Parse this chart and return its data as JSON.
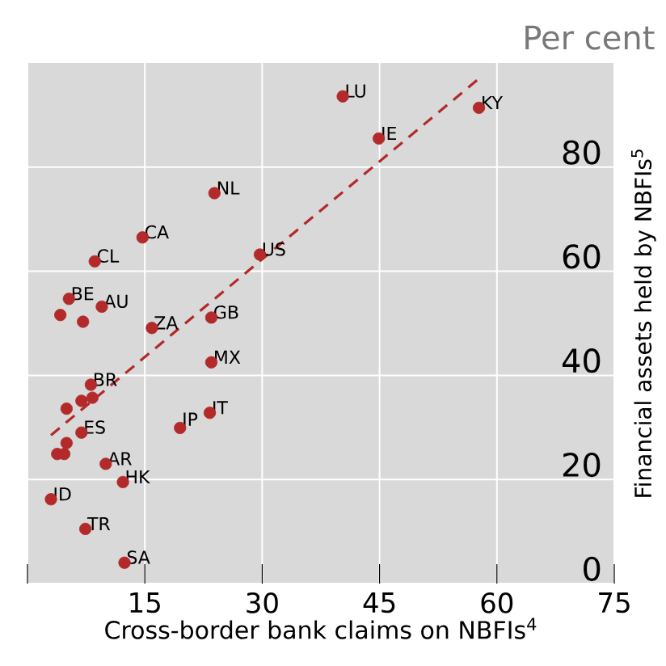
{
  "chart_data": {
    "type": "scatter",
    "xlabel": "Cross-border bank claims on NBFIs$^{4}$",
    "ylabel": "Financial assets held by NBFIs$^{5}$",
    "xlim": [
      0,
      75
    ],
    "xticks": [
      {
        "value": 0,
        "label": null
      },
      15,
      30,
      45,
      60,
      75
    ],
    "ylim": [
      0,
      100
    ],
    "yticks": [
      0,
      20,
      40,
      60,
      80
    ],
    "grid": true,
    "series": [
      {
        "marker": "circle",
        "color": "#b22a2a",
        "x": [
          40.3,
          57.7,
          44.9,
          23.9,
          14.7,
          29.7,
          8.6,
          5.3,
          9.5,
          4.2,
          7.1,
          23.5,
          15.9,
          23.5,
          8.1,
          6.9,
          8.3,
          5.0,
          23.3,
          19.5,
          6.9,
          5.0,
          3.8,
          4.7,
          10.0,
          12.2,
          3.0,
          7.4,
          12.4
        ],
        "values": [
          93.6,
          91.4,
          85.5,
          75,
          66.5,
          63.2,
          61.9,
          54.7,
          53.2,
          51.6,
          50.3,
          51.1,
          49.1,
          42.5,
          38.2,
          35.1,
          35.7,
          33.6,
          32.8,
          29.9,
          29.0,
          27.0,
          24.9,
          24.9,
          23.0,
          19.5,
          16.2,
          10.5,
          4.0
        ]
      },
      {
        "type": "line",
        "color": "#b22a2a",
        "line_style": "dashed",
        "marker": "none",
        "x": [
          3.0,
          57.7
        ],
        "values": [
          28.5,
          97.0
        ]
      }
    ],
    "annotations": [
      "Per cent",
      {
        "text": "LU",
        "x": 40.3,
        "y": 93.6
      },
      {
        "text": "KY",
        "x": 57.7,
        "y": 91.4
      },
      {
        "text": "IE",
        "x": 44.9,
        "y": 85.5
      },
      {
        "text": "NL",
        "x": 23.9,
        "y": 75
      },
      {
        "text": "CA",
        "x": 14.7,
        "y": 66.5
      },
      {
        "text": "US",
        "x": 29.7,
        "y": 63.2
      },
      {
        "text": "CL",
        "x": 8.6,
        "y": 61.9
      },
      {
        "text": "BE",
        "x": 5.3,
        "y": 54.7
      },
      {
        "text": "AU",
        "x": 9.5,
        "y": 53.2
      },
      {
        "text": "GB",
        "x": 23.5,
        "y": 51.1
      },
      {
        "text": "ZA",
        "x": 15.9,
        "y": 49.1
      },
      {
        "text": "MX",
        "x": 23.5,
        "y": 42.5
      },
      {
        "text": "BR",
        "x": 8.1,
        "y": 38.2
      },
      {
        "text": "IT",
        "x": 23.3,
        "y": 32.8
      },
      {
        "text": "JP",
        "x": 19.5,
        "y": 29.9
      },
      {
        "text": "ES",
        "x": 6.9,
        "y": 29.0
      },
      {
        "text": "AR",
        "x": 10.0,
        "y": 23.0
      },
      {
        "text": "HK",
        "x": 12.2,
        "y": 19.5
      },
      {
        "text": "ID",
        "x": 3.0,
        "y": 16.2
      },
      {
        "text": "TR",
        "x": 7.4,
        "y": 10.5
      },
      {
        "text": "SA",
        "x": 12.4,
        "y": 4.0
      }
    ]
  }
}
